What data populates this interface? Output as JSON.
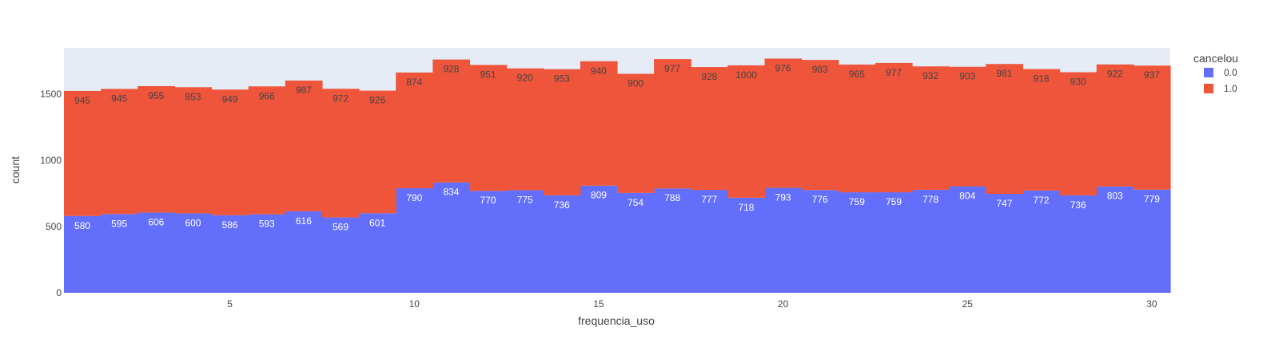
{
  "chart_data": {
    "type": "bar",
    "barmode": "stack",
    "xlabel": "frequencia_uso",
    "ylabel": "count",
    "x": [
      1,
      2,
      3,
      4,
      5,
      6,
      7,
      8,
      9,
      10,
      11,
      12,
      13,
      14,
      15,
      16,
      17,
      18,
      19,
      20,
      21,
      22,
      23,
      24,
      25,
      26,
      27,
      28,
      29,
      30
    ],
    "xlim": [
      0.5,
      30.5
    ],
    "ylim": [
      0,
      1850
    ],
    "x_ticks": [
      5,
      10,
      15,
      20,
      25,
      30
    ],
    "y_ticks": [
      0,
      500,
      1000,
      1500
    ],
    "grid": false,
    "plot_background": "#e5ecf6",
    "legend": {
      "title": "cancelou",
      "placement": "right"
    },
    "series": [
      {
        "name": "0.0",
        "color": "#636efa",
        "label_color": "#ffffff",
        "values": [
          580,
          595,
          606,
          600,
          586,
          593,
          616,
          569,
          601,
          790,
          834,
          770,
          775,
          736,
          809,
          754,
          788,
          777,
          718,
          793,
          776,
          759,
          759,
          778,
          804,
          747,
          772,
          736,
          803,
          779
        ]
      },
      {
        "name": "1.0",
        "color": "#ef553b",
        "label_color": "#444444",
        "values": [
          945,
          945,
          955,
          953,
          949,
          966,
          987,
          972,
          926,
          874,
          928,
          951,
          920,
          953,
          940,
          900,
          977,
          928,
          1000,
          976,
          983,
          965,
          977,
          932,
          903,
          981,
          918,
          930,
          922,
          937
        ]
      }
    ]
  }
}
